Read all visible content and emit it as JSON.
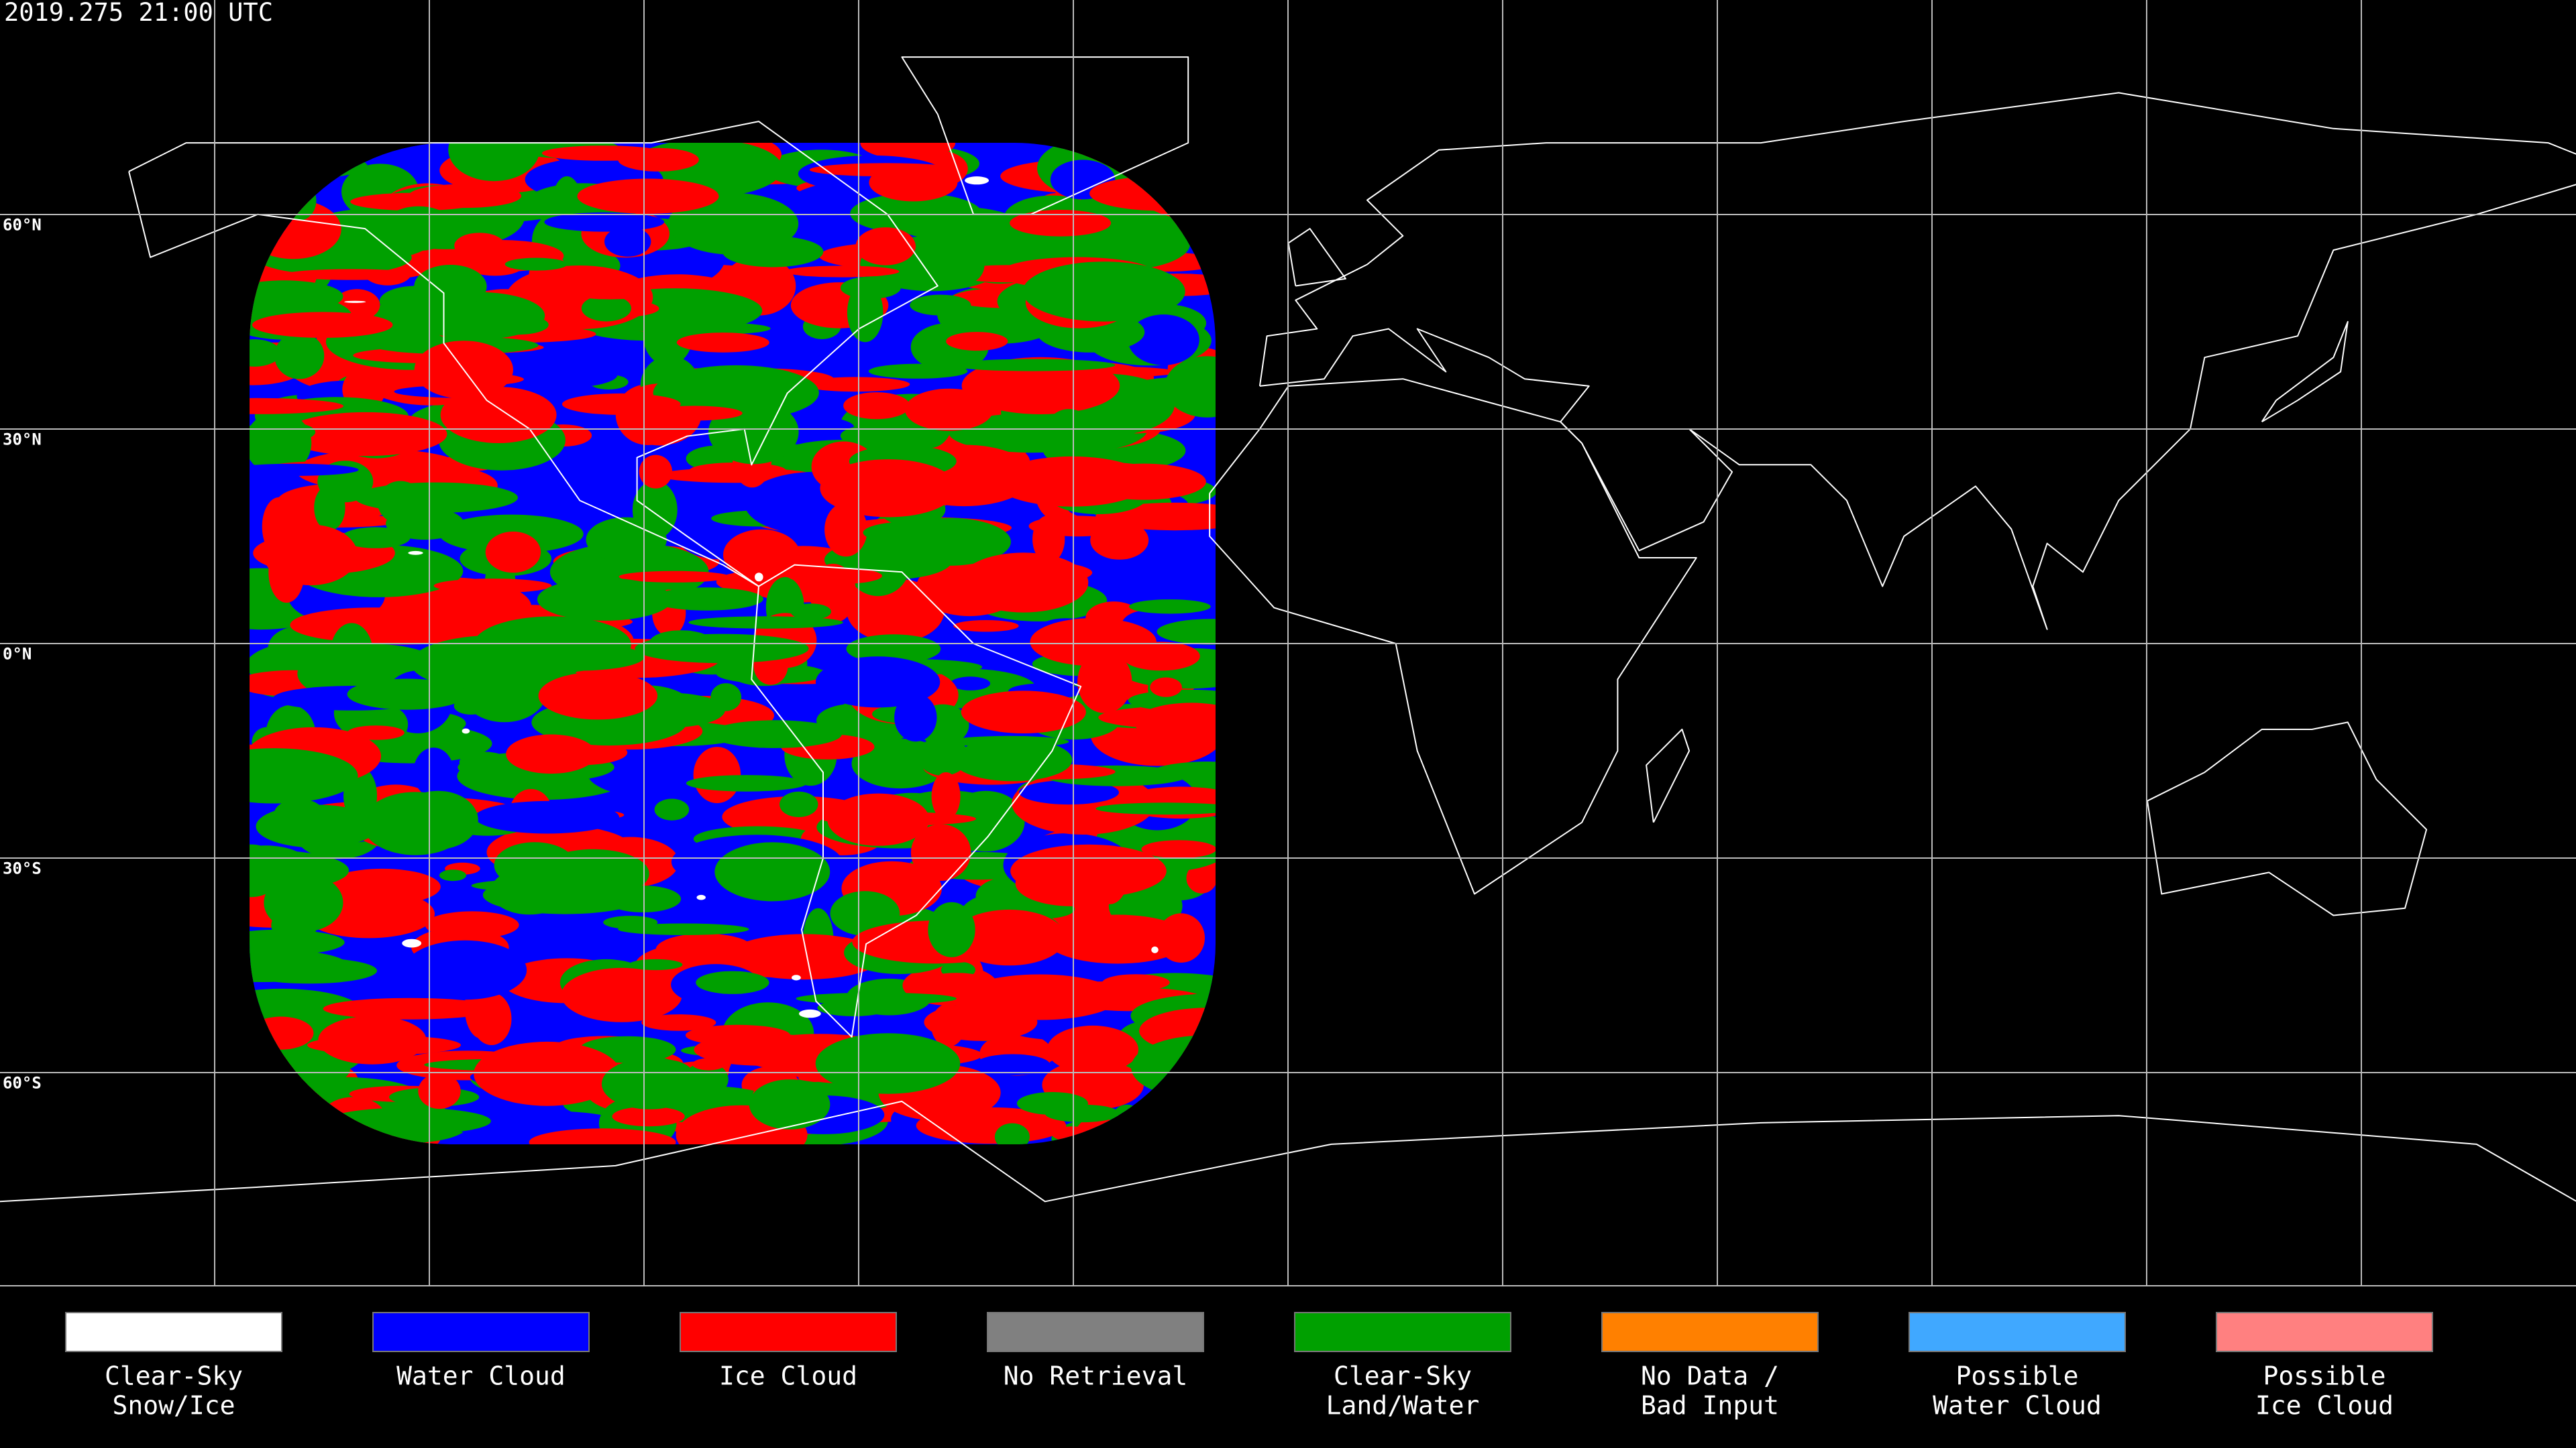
{
  "header": {
    "timestamp": "2019.275 21:00 UTC"
  },
  "lat_labels": [
    "60°N",
    "30°N",
    "0°N",
    "30°S",
    "60°S"
  ],
  "legend": {
    "items": [
      {
        "lines": [
          "Clear-Sky",
          "Snow/Ice"
        ],
        "color": "#ffffff"
      },
      {
        "lines": [
          "Water Cloud"
        ],
        "color": "#0000ff"
      },
      {
        "lines": [
          "Ice Cloud"
        ],
        "color": "#ff0000"
      },
      {
        "lines": [
          "No Retrieval"
        ],
        "color": "#808080"
      },
      {
        "lines": [
          "Clear-Sky",
          "Land/Water"
        ],
        "color": "#00a000"
      },
      {
        "lines": [
          "No Data /",
          "Bad Input"
        ],
        "color": "#ff8000"
      },
      {
        "lines": [
          "Possible",
          "Water Cloud"
        ],
        "color": "#40a8ff"
      },
      {
        "lines": [
          "Possible",
          "Ice Cloud"
        ],
        "color": "#ff8080"
      }
    ]
  }
}
